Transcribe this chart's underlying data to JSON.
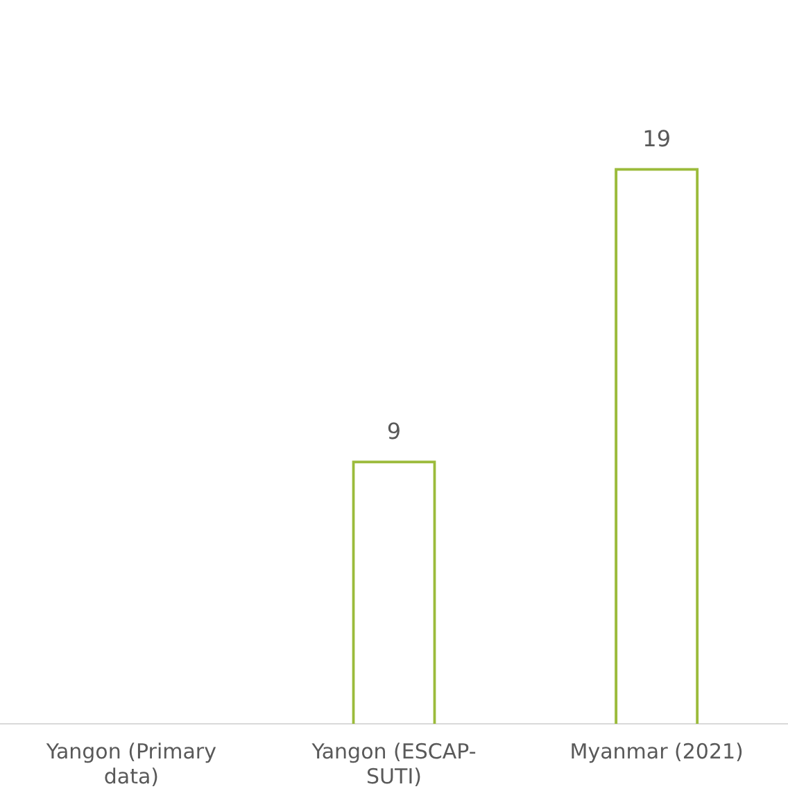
{
  "chart_data": {
    "type": "bar",
    "categories": [
      "Yangon (Primary data)",
      "Yangon (ESCAP-SUTI)",
      "Myanmar (2021)"
    ],
    "values": [
      null,
      9,
      19
    ],
    "color": "#9bbb3b",
    "data_labels": true,
    "grid": false,
    "legend": false
  }
}
